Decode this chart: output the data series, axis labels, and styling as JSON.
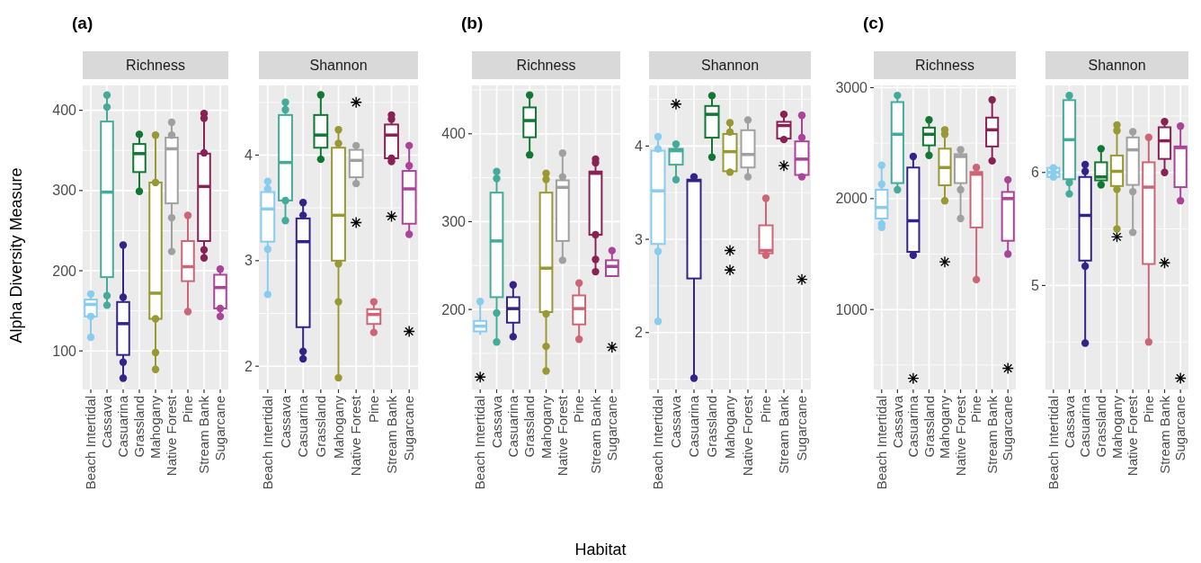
{
  "chart_data": [
    {
      "type": "box",
      "title": "Richness",
      "ylabel": "Alpha Diversity Measure",
      "annotations": [
        "(a)"
      ],
      "categories": [
        "Beach Intertidal",
        "Cassava",
        "Casuarina",
        "Grassland",
        "Mahogany",
        "Native Forest",
        "Pine",
        "Stream Bank",
        "Sugarcane"
      ],
      "colors": [
        "#88ccee",
        "#44aa99",
        "#332288",
        "#117733",
        "#999933",
        "#a0a0a0",
        "#cc6677",
        "#882255",
        "#aa4499"
      ],
      "ylim": [
        52,
        431
      ],
      "yticks": [
        100,
        200,
        300,
        400
      ],
      "grid": true,
      "boxes": [
        {
          "low": 117,
          "q1": 143,
          "median": 158,
          "q3": 164,
          "high": 171
        },
        {
          "low": 157,
          "q1": 192,
          "median": 298,
          "q3": 386,
          "high": 419
        },
        {
          "low": 66,
          "q1": 95,
          "median": 134,
          "q3": 161,
          "high": 232
        },
        {
          "low": 299,
          "q1": 323,
          "median": 346,
          "q3": 358,
          "high": 370
        },
        {
          "low": 77,
          "q1": 140,
          "median": 172,
          "q3": 310,
          "high": 369
        },
        {
          "low": 224,
          "q1": 284,
          "median": 352,
          "q3": 366,
          "high": 385
        },
        {
          "low": 149,
          "q1": 187,
          "median": 205,
          "q3": 237,
          "high": 269
        },
        {
          "low": 216,
          "q1": 237,
          "median": 305,
          "q3": 346,
          "high": 396
        },
        {
          "low": 143,
          "q1": 153,
          "median": 179,
          "q3": 195,
          "high": 202
        }
      ],
      "series": [
        {
          "type": "scatter",
          "marker": "circle",
          "x": [
            "Beach Intertidal",
            "Beach Intertidal",
            "Beach Intertidal",
            "Cassava",
            "Cassava",
            "Cassava",
            "Cassava",
            "Casuarina",
            "Casuarina",
            "Casuarina",
            "Casuarina",
            "Grassland",
            "Grassland",
            "Mahogany",
            "Mahogany",
            "Mahogany",
            "Mahogany",
            "Mahogany",
            "Native Forest",
            "Native Forest",
            "Native Forest",
            "Native Forest",
            "Pine",
            "Pine",
            "Stream Bank",
            "Stream Bank",
            "Stream Bank",
            "Stream Bank",
            "Stream Bank",
            "Sugarcane",
            "Sugarcane",
            "Sugarcane"
          ],
          "values": [
            171,
            143,
            117,
            419,
            404,
            169,
            157,
            232,
            167,
            86,
            66,
            370,
            299,
            369,
            310,
            140,
            98,
            77,
            385,
            369,
            266,
            224,
            269,
            149,
            396,
            390,
            347,
            226,
            216,
            202,
            153,
            143
          ],
          "colors": [
            "#88ccee",
            "#88ccee",
            "#88ccee",
            "#44aa99",
            "#44aa99",
            "#44aa99",
            "#44aa99",
            "#332288",
            "#332288",
            "#332288",
            "#332288",
            "#117733",
            "#117733",
            "#999933",
            "#999933",
            "#999933",
            "#999933",
            "#999933",
            "#a0a0a0",
            "#a0a0a0",
            "#a0a0a0",
            "#a0a0a0",
            "#cc6677",
            "#cc6677",
            "#882255",
            "#882255",
            "#882255",
            "#882255",
            "#882255",
            "#aa4499",
            "#aa4499",
            "#aa4499"
          ]
        }
      ]
    },
    {
      "type": "box",
      "title": "Shannon",
      "categories": [
        "Beach Intertidal",
        "Cassava",
        "Casuarina",
        "Grassland",
        "Mahogany",
        "Native Forest",
        "Pine",
        "Stream Bank",
        "Sugarcane"
      ],
      "colors": [
        "#88ccee",
        "#44aa99",
        "#332288",
        "#117733",
        "#999933",
        "#a0a0a0",
        "#cc6677",
        "#882255",
        "#aa4499"
      ],
      "ylim": [
        1.78,
        4.66
      ],
      "yticks": [
        2,
        3,
        4
      ],
      "grid": true,
      "boxes": [
        {
          "low": 2.68,
          "q1": 3.18,
          "median": 3.49,
          "q3": 3.65,
          "high": 3.75
        },
        {
          "low": 3.38,
          "q1": 3.57,
          "median": 3.93,
          "q3": 4.38,
          "high": 4.5
        },
        {
          "low": 2.07,
          "q1": 2.37,
          "median": 3.18,
          "q3": 3.4,
          "high": 3.55
        },
        {
          "low": 3.96,
          "q1": 4.07,
          "median": 4.19,
          "q3": 4.38,
          "high": 4.57
        },
        {
          "low": 1.89,
          "q1": 3.0,
          "median": 3.43,
          "q3": 4.07,
          "high": 4.24
        },
        {
          "low": 3.73,
          "q1": 3.79,
          "median": 3.95,
          "q3": 4.05,
          "high": 4.09,
          "outliers": [
            4.5,
            3.36
          ]
        },
        {
          "low": 2.32,
          "q1": 2.4,
          "median": 2.49,
          "q3": 2.54,
          "high": 2.61
        },
        {
          "low": 3.94,
          "q1": 3.97,
          "median": 4.19,
          "q3": 4.29,
          "high": 4.38,
          "outliers": [
            3.42
          ]
        },
        {
          "low": 3.25,
          "q1": 3.35,
          "median": 3.68,
          "q3": 3.85,
          "high": 4.09,
          "outliers": [
            2.33
          ]
        }
      ],
      "series": [
        {
          "type": "scatter",
          "marker": "circle",
          "x": [
            "Beach Intertidal",
            "Beach Intertidal",
            "Beach Intertidal",
            "Beach Intertidal",
            "Cassava",
            "Cassava",
            "Cassava",
            "Cassava",
            "Casuarina",
            "Casuarina",
            "Casuarina",
            "Casuarina",
            "Grassland",
            "Grassland",
            "Mahogany",
            "Mahogany",
            "Mahogany",
            "Mahogany",
            "Mahogany",
            "Native Forest",
            "Native Forest",
            "Pine",
            "Pine",
            "Stream Bank",
            "Stream Bank",
            "Stream Bank",
            "Stream Bank",
            "Sugarcane",
            "Sugarcane",
            "Sugarcane"
          ],
          "values": [
            3.75,
            3.68,
            3.11,
            2.68,
            4.5,
            4.43,
            3.57,
            3.38,
            3.55,
            3.43,
            2.14,
            2.07,
            4.57,
            3.96,
            4.24,
            4.11,
            2.97,
            2.61,
            1.89,
            4.09,
            3.73,
            2.61,
            2.32,
            4.38,
            4.34,
            3.97,
            3.94,
            4.09,
            3.9,
            3.25
          ],
          "colors": [
            "#88ccee",
            "#88ccee",
            "#88ccee",
            "#88ccee",
            "#44aa99",
            "#44aa99",
            "#44aa99",
            "#44aa99",
            "#332288",
            "#332288",
            "#332288",
            "#332288",
            "#117733",
            "#117733",
            "#999933",
            "#999933",
            "#999933",
            "#999933",
            "#999933",
            "#a0a0a0",
            "#a0a0a0",
            "#cc6677",
            "#cc6677",
            "#882255",
            "#882255",
            "#882255",
            "#882255",
            "#aa4499",
            "#aa4499",
            "#aa4499"
          ]
        }
      ]
    },
    {
      "type": "box",
      "title": "Richness",
      "xlabel": "Habitat",
      "annotations": [
        "(b)"
      ],
      "categories": [
        "Beach Intertidal",
        "Cassava",
        "Casuarina",
        "Grassland",
        "Mahogany",
        "Native Forest",
        "Pine",
        "Stream Bank",
        "Sugarcane"
      ],
      "colors": [
        "#88ccee",
        "#44aa99",
        "#332288",
        "#117733",
        "#999933",
        "#a0a0a0",
        "#cc6677",
        "#882255",
        "#aa4499"
      ],
      "ylim": [
        109,
        455
      ],
      "yticks": [
        200,
        300,
        400
      ],
      "grid": true,
      "boxes": [
        {
          "low": 171,
          "q1": 175,
          "median": 181,
          "q3": 187,
          "high": 209,
          "outliers": [
            123
          ]
        },
        {
          "low": 163,
          "q1": 214,
          "median": 278,
          "q3": 333,
          "high": 357
        },
        {
          "low": 169,
          "q1": 185,
          "median": 201,
          "q3": 214,
          "high": 228
        },
        {
          "low": 376,
          "q1": 396,
          "median": 415,
          "q3": 430,
          "high": 444
        },
        {
          "low": 130,
          "q1": 197,
          "median": 247,
          "q3": 333,
          "high": 355
        },
        {
          "low": 256,
          "q1": 278,
          "median": 339,
          "q3": 347,
          "high": 378
        },
        {
          "low": 166,
          "q1": 183,
          "median": 201,
          "q3": 216,
          "high": 230
        },
        {
          "low": 243,
          "q1": 285,
          "median": 355,
          "q3": 357,
          "high": 371
        },
        {
          "low": 237,
          "q1": 238,
          "median": 249,
          "q3": 256,
          "high": 267,
          "outliers": [
            157
          ]
        }
      ],
      "series": [
        {
          "type": "scatter",
          "marker": "circle",
          "x": [
            "Beach Intertidal",
            "Cassava",
            "Cassava",
            "Cassava",
            "Cassava",
            "Casuarina",
            "Casuarina",
            "Grassland",
            "Grassland",
            "Mahogany",
            "Mahogany",
            "Mahogany",
            "Mahogany",
            "Mahogany",
            "Native Forest",
            "Native Forest",
            "Native Forest",
            "Pine",
            "Pine",
            "Stream Bank",
            "Stream Bank",
            "Stream Bank",
            "Stream Bank",
            "Stream Bank",
            "Sugarcane"
          ],
          "values": [
            209,
            357,
            349,
            196,
            163,
            228,
            169,
            444,
            376,
            355,
            348,
            195,
            158,
            130,
            378,
            351,
            256,
            230,
            166,
            371,
            367,
            285,
            257,
            243,
            267
          ],
          "colors": [
            "#88ccee",
            "#44aa99",
            "#44aa99",
            "#44aa99",
            "#44aa99",
            "#332288",
            "#332288",
            "#117733",
            "#117733",
            "#999933",
            "#999933",
            "#999933",
            "#999933",
            "#999933",
            "#a0a0a0",
            "#a0a0a0",
            "#a0a0a0",
            "#cc6677",
            "#cc6677",
            "#882255",
            "#882255",
            "#882255",
            "#882255",
            "#882255",
            "#aa4499"
          ]
        }
      ]
    },
    {
      "type": "box",
      "title": "Shannon",
      "categories": [
        "Beach Intertidal",
        "Cassava",
        "Casuarina",
        "Grassland",
        "Mahogany",
        "Native Forest",
        "Pine",
        "Stream Bank",
        "Sugarcane"
      ],
      "colors": [
        "#88ccee",
        "#44aa99",
        "#332288",
        "#117733",
        "#999933",
        "#a0a0a0",
        "#cc6677",
        "#882255",
        "#aa4499"
      ],
      "ylim": [
        1.39,
        4.65
      ],
      "yticks": [
        2,
        3,
        4
      ],
      "grid": true,
      "boxes": [
        {
          "low": 2.12,
          "q1": 2.95,
          "median": 3.52,
          "q3": 3.95,
          "high": 4.1
        },
        {
          "low": 3.64,
          "q1": 3.8,
          "median": 3.95,
          "q3": 3.97,
          "high": 4.02,
          "outliers": [
            4.45
          ]
        },
        {
          "low": 1.51,
          "q1": 2.58,
          "median": 3.63,
          "q3": 3.64,
          "high": 3.67
        },
        {
          "low": 3.88,
          "q1": 4.09,
          "median": 4.34,
          "q3": 4.43,
          "high": 4.54
        },
        {
          "low": 3.72,
          "q1": 3.73,
          "median": 3.94,
          "q3": 4.13,
          "high": 4.25,
          "outliers": [
            2.88,
            2.67
          ]
        },
        {
          "low": 3.67,
          "q1": 3.77,
          "median": 3.91,
          "q3": 4.17,
          "high": 4.28
        },
        {
          "low": 2.83,
          "q1": 2.85,
          "median": 2.88,
          "q3": 3.15,
          "high": 3.44
        },
        {
          "low": 4.07,
          "q1": 4.08,
          "median": 4.22,
          "q3": 4.26,
          "high": 4.34,
          "outliers": [
            3.79
          ]
        },
        {
          "low": 3.67,
          "q1": 3.69,
          "median": 3.86,
          "q3": 4.05,
          "high": 4.33,
          "outliers": [
            2.57
          ]
        }
      ],
      "series": [
        {
          "type": "scatter",
          "marker": "circle",
          "x": [
            "Beach Intertidal",
            "Beach Intertidal",
            "Beach Intertidal",
            "Beach Intertidal",
            "Cassava",
            "Cassava",
            "Casuarina",
            "Casuarina",
            "Grassland",
            "Grassland",
            "Mahogany",
            "Mahogany",
            "Mahogany",
            "Native Forest",
            "Native Forest",
            "Pine",
            "Pine",
            "Stream Bank",
            "Stream Bank",
            "Sugarcane",
            "Sugarcane",
            "Sugarcane"
          ],
          "values": [
            4.1,
            3.97,
            2.87,
            2.12,
            4.02,
            3.64,
            3.67,
            1.51,
            4.54,
            3.88,
            4.25,
            4.15,
            3.72,
            4.28,
            3.67,
            3.44,
            2.83,
            4.34,
            4.07,
            4.33,
            4.09,
            3.67
          ],
          "colors": [
            "#88ccee",
            "#88ccee",
            "#88ccee",
            "#88ccee",
            "#44aa99",
            "#44aa99",
            "#332288",
            "#332288",
            "#117733",
            "#117733",
            "#999933",
            "#999933",
            "#999933",
            "#a0a0a0",
            "#a0a0a0",
            "#cc6677",
            "#cc6677",
            "#882255",
            "#882255",
            "#aa4499",
            "#aa4499",
            "#aa4499"
          ]
        }
      ]
    },
    {
      "type": "box",
      "title": "Richness",
      "annotations": [
        "(c)"
      ],
      "categories": [
        "Beach Intertidal",
        "Cassava",
        "Casuarina",
        "Grassland",
        "Mahogany",
        "Native Forest",
        "Pine",
        "Stream Bank",
        "Sugarcane"
      ],
      "colors": [
        "#88ccee",
        "#44aa99",
        "#332288",
        "#117733",
        "#999933",
        "#a0a0a0",
        "#cc6677",
        "#882255",
        "#aa4499"
      ],
      "ylim": [
        280,
        3020
      ],
      "yticks": [
        1000,
        2000,
        3000
      ],
      "grid": true,
      "boxes": [
        {
          "low": 1740,
          "q1": 1820,
          "median": 1920,
          "q3": 2080,
          "high": 2300
        },
        {
          "low": 2080,
          "q1": 2140,
          "median": 2580,
          "q3": 2870,
          "high": 2930
        },
        {
          "low": 1490,
          "q1": 1520,
          "median": 1800,
          "q3": 2280,
          "high": 2380,
          "outliers": [
            380
          ]
        },
        {
          "low": 2390,
          "q1": 2480,
          "median": 2580,
          "q3": 2640,
          "high": 2710
        },
        {
          "low": 1980,
          "q1": 2120,
          "median": 2280,
          "q3": 2450,
          "high": 2620,
          "outliers": [
            1430
          ]
        },
        {
          "low": 1820,
          "q1": 2140,
          "median": 2380,
          "q3": 2400,
          "high": 2440
        },
        {
          "low": 1270,
          "q1": 1740,
          "median": 2220,
          "q3": 2240,
          "high": 2280
        },
        {
          "low": 2340,
          "q1": 2470,
          "median": 2620,
          "q3": 2730,
          "high": 2890
        },
        {
          "low": 1500,
          "q1": 1620,
          "median": 2000,
          "q3": 2060,
          "high": 2170,
          "outliers": [
            470
          ]
        }
      ],
      "series": [
        {
          "type": "scatter",
          "marker": "circle",
          "x": [
            "Beach Intertidal",
            "Beach Intertidal",
            "Beach Intertidal",
            "Beach Intertidal",
            "Cassava",
            "Cassava",
            "Casuarina",
            "Casuarina",
            "Grassland",
            "Grassland",
            "Mahogany",
            "Mahogany",
            "Mahogany",
            "Native Forest",
            "Native Forest",
            "Native Forest",
            "Pine",
            "Pine",
            "Stream Bank",
            "Stream Bank",
            "Sugarcane",
            "Sugarcane"
          ],
          "values": [
            2300,
            2130,
            1770,
            1740,
            2930,
            2080,
            2380,
            1490,
            2710,
            2390,
            2620,
            2580,
            1980,
            2440,
            2080,
            1820,
            2280,
            1270,
            2890,
            2340,
            2170,
            1500
          ],
          "colors": [
            "#88ccee",
            "#88ccee",
            "#88ccee",
            "#88ccee",
            "#44aa99",
            "#44aa99",
            "#332288",
            "#332288",
            "#117733",
            "#117733",
            "#999933",
            "#999933",
            "#999933",
            "#a0a0a0",
            "#a0a0a0",
            "#a0a0a0",
            "#cc6677",
            "#cc6677",
            "#882255",
            "#882255",
            "#aa4499",
            "#aa4499"
          ]
        }
      ]
    },
    {
      "type": "box",
      "title": "Shannon",
      "categories": [
        "Beach Intertidal",
        "Cassava",
        "Casuarina",
        "Grassland",
        "Mahogany",
        "Native Forest",
        "Pine",
        "Stream Bank",
        "Sugarcane"
      ],
      "colors": [
        "#88ccee",
        "#44aa99",
        "#332288",
        "#117733",
        "#999933",
        "#a0a0a0",
        "#cc6677",
        "#882255",
        "#aa4499"
      ],
      "ylim": [
        4.08,
        6.77
      ],
      "yticks": [
        5,
        6
      ],
      "grid": true,
      "boxes": [
        {
          "low": 5.94,
          "q1": 5.96,
          "median": 6.0,
          "q3": 6.04,
          "high": 6.07
        },
        {
          "low": 5.81,
          "q1": 5.94,
          "median": 6.29,
          "q3": 6.64,
          "high": 6.68
        },
        {
          "low": 4.49,
          "q1": 5.22,
          "median": 5.62,
          "q3": 5.96,
          "high": 6.07
        },
        {
          "low": 5.89,
          "q1": 5.93,
          "median": 5.96,
          "q3": 6.09,
          "high": 6.21
        },
        {
          "low": 5.5,
          "q1": 5.88,
          "median": 6.01,
          "q3": 6.15,
          "high": 6.42,
          "outliers": [
            5.43
          ]
        },
        {
          "low": 5.47,
          "q1": 5.89,
          "median": 6.2,
          "q3": 6.31,
          "high": 6.36
        },
        {
          "low": 4.5,
          "q1": 5.19,
          "median": 5.87,
          "q3": 6.09,
          "high": 6.31
        },
        {
          "low": 6.0,
          "q1": 6.12,
          "median": 6.28,
          "q3": 6.4,
          "high": 6.45,
          "outliers": [
            5.2
          ]
        },
        {
          "low": 5.75,
          "q1": 5.87,
          "median": 6.22,
          "q3": 6.23,
          "high": 6.41,
          "outliers": [
            4.18
          ]
        }
      ],
      "series": [
        {
          "type": "scatter",
          "marker": "circle",
          "x": [
            "Beach Intertidal",
            "Beach Intertidal",
            "Cassava",
            "Cassava",
            "Cassava",
            "Casuarina",
            "Casuarina",
            "Casuarina",
            "Casuarina",
            "Grassland",
            "Grassland",
            "Mahogany",
            "Mahogany",
            "Mahogany",
            "Mahogany",
            "Native Forest",
            "Native Forest",
            "Native Forest",
            "Pine",
            "Pine",
            "Stream Bank",
            "Stream Bank",
            "Sugarcane",
            "Sugarcane"
          ],
          "values": [
            6.04,
            5.96,
            6.68,
            5.91,
            5.81,
            6.07,
            6.01,
            5.17,
            4.49,
            6.21,
            5.89,
            6.42,
            6.37,
            5.85,
            5.5,
            6.36,
            5.83,
            5.47,
            6.31,
            4.5,
            6.45,
            6.0,
            6.41,
            5.75
          ],
          "colors": [
            "#88ccee",
            "#88ccee",
            "#44aa99",
            "#44aa99",
            "#44aa99",
            "#332288",
            "#332288",
            "#332288",
            "#332288",
            "#117733",
            "#117733",
            "#999933",
            "#999933",
            "#999933",
            "#999933",
            "#a0a0a0",
            "#a0a0a0",
            "#a0a0a0",
            "#cc6677",
            "#cc6677",
            "#882255",
            "#882255",
            "#aa4499",
            "#aa4499"
          ]
        }
      ]
    }
  ]
}
